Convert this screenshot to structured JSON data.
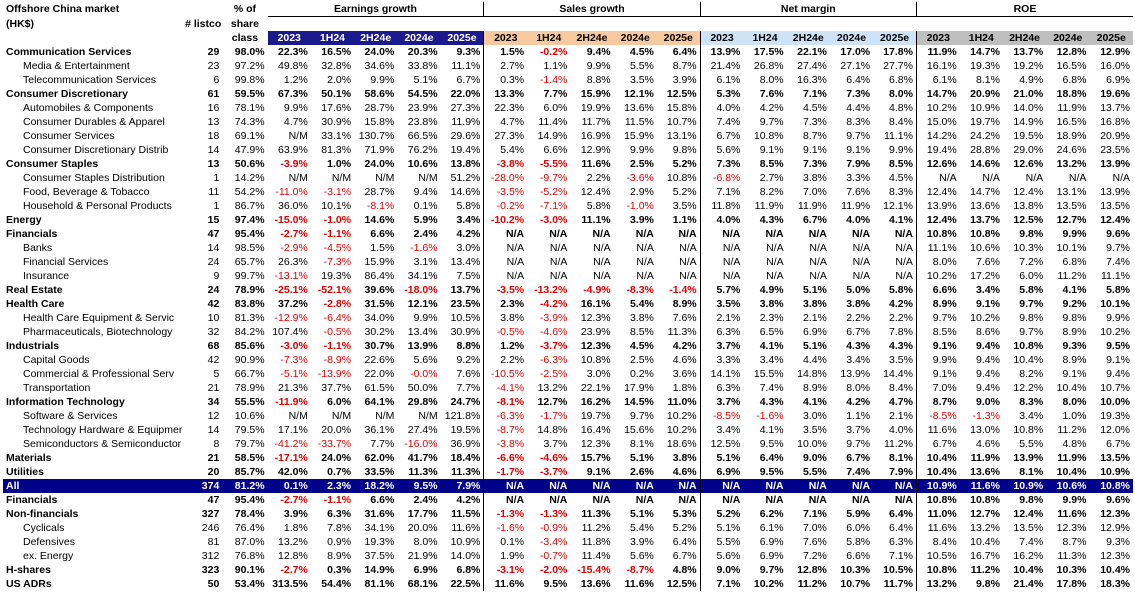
{
  "header": {
    "title": "Offshore China market",
    "currency": "(HK$)",
    "listco": "# listco",
    "share_line1": "% of",
    "share_line2": "share",
    "share_line3": "class",
    "groups": [
      "Earnings growth",
      "Sales growth",
      "Net margin",
      "ROE"
    ],
    "years": [
      "2023",
      "1H24",
      "2H24e",
      "2024e",
      "2025e"
    ]
  },
  "rows": [
    {
      "name": "Communication Services",
      "lvl": 0,
      "listco": "29",
      "share": "98.0%",
      "v": [
        "22.3%",
        "16.5%",
        "24.0%",
        "20.3%",
        "9.3%",
        "1.5%",
        "-0.2%",
        "9.4%",
        "4.5%",
        "6.4%",
        "13.9%",
        "17.5%",
        "22.1%",
        "17.0%",
        "17.8%",
        "11.9%",
        "14.7%",
        "13.7%",
        "12.8%",
        "12.9%"
      ]
    },
    {
      "name": "Media & Entertainment",
      "lvl": 1,
      "listco": "23",
      "share": "97.2%",
      "v": [
        "49.8%",
        "32.8%",
        "34.6%",
        "33.8%",
        "11.1%",
        "2.7%",
        "1.1%",
        "9.9%",
        "5.5%",
        "8.7%",
        "21.4%",
        "26.8%",
        "27.4%",
        "27.1%",
        "27.7%",
        "16.1%",
        "19.3%",
        "19.2%",
        "16.5%",
        "16.0%"
      ]
    },
    {
      "name": "Telecommunication Services",
      "lvl": 1,
      "listco": "6",
      "share": "99.8%",
      "v": [
        "1.2%",
        "2.0%",
        "9.9%",
        "5.1%",
        "6.7%",
        "0.3%",
        "-1.4%",
        "8.8%",
        "3.5%",
        "3.9%",
        "6.1%",
        "8.0%",
        "16.3%",
        "6.4%",
        "6.8%",
        "6.1%",
        "8.1%",
        "4.9%",
        "6.8%",
        "6.9%"
      ]
    },
    {
      "name": "Consumer Discretionary",
      "lvl": 0,
      "listco": "61",
      "share": "59.5%",
      "v": [
        "67.3%",
        "50.1%",
        "58.6%",
        "54.5%",
        "22.0%",
        "13.3%",
        "7.7%",
        "15.9%",
        "12.1%",
        "12.5%",
        "5.3%",
        "7.6%",
        "7.1%",
        "7.3%",
        "8.0%",
        "14.7%",
        "20.9%",
        "21.0%",
        "18.8%",
        "19.6%"
      ]
    },
    {
      "name": "Automobiles & Components",
      "lvl": 1,
      "listco": "16",
      "share": "78.1%",
      "v": [
        "9.9%",
        "17.6%",
        "28.7%",
        "23.9%",
        "27.3%",
        "22.3%",
        "6.0%",
        "19.9%",
        "13.6%",
        "15.8%",
        "4.0%",
        "4.2%",
        "4.5%",
        "4.4%",
        "4.8%",
        "10.2%",
        "10.9%",
        "14.0%",
        "11.9%",
        "13.7%"
      ]
    },
    {
      "name": "Consumer Durables & Apparel",
      "lvl": 1,
      "listco": "13",
      "share": "74.3%",
      "v": [
        "4.7%",
        "30.9%",
        "15.8%",
        "23.8%",
        "11.9%",
        "4.7%",
        "11.4%",
        "11.7%",
        "11.5%",
        "10.7%",
        "7.4%",
        "9.7%",
        "7.3%",
        "8.3%",
        "8.4%",
        "15.0%",
        "19.7%",
        "14.9%",
        "16.5%",
        "16.8%"
      ]
    },
    {
      "name": "Consumer Services",
      "lvl": 1,
      "listco": "18",
      "share": "69.1%",
      "v": [
        "N/M",
        "33.1%",
        "130.7%",
        "66.5%",
        "29.6%",
        "27.3%",
        "14.9%",
        "16.9%",
        "15.9%",
        "13.1%",
        "6.7%",
        "10.8%",
        "8.7%",
        "9.7%",
        "11.1%",
        "14.2%",
        "24.2%",
        "19.5%",
        "18.9%",
        "20.9%"
      ]
    },
    {
      "name": "Consumer Discretionary Distrib",
      "lvl": 1,
      "listco": "14",
      "share": "47.9%",
      "v": [
        "63.9%",
        "81.3%",
        "71.9%",
        "76.2%",
        "19.4%",
        "5.4%",
        "6.6%",
        "12.9%",
        "9.9%",
        "9.8%",
        "5.6%",
        "9.1%",
        "9.1%",
        "9.1%",
        "9.9%",
        "19.4%",
        "28.8%",
        "29.0%",
        "24.6%",
        "23.5%"
      ]
    },
    {
      "name": "Consumer Staples",
      "lvl": 0,
      "listco": "13",
      "share": "50.6%",
      "v": [
        "-3.9%",
        "1.0%",
        "24.0%",
        "10.6%",
        "13.8%",
        "-3.8%",
        "-5.5%",
        "11.6%",
        "2.5%",
        "5.2%",
        "7.3%",
        "8.5%",
        "7.3%",
        "7.9%",
        "8.5%",
        "12.6%",
        "14.6%",
        "12.6%",
        "13.2%",
        "13.9%"
      ]
    },
    {
      "name": "Consumer Staples Distribution",
      "lvl": 1,
      "listco": "1",
      "share": "14.2%",
      "v": [
        "N/M",
        "N/M",
        "N/M",
        "N/M",
        "51.2%",
        "-28.0%",
        "-9.7%",
        "2.2%",
        "-3.6%",
        "10.8%",
        "-6.8%",
        "2.7%",
        "3.8%",
        "3.3%",
        "4.5%",
        "N/A",
        "N/A",
        "N/A",
        "N/A",
        "N/A"
      ]
    },
    {
      "name": "Food, Beverage & Tobacco",
      "lvl": 1,
      "listco": "11",
      "share": "54.2%",
      "v": [
        "-11.0%",
        "-3.1%",
        "28.7%",
        "9.4%",
        "14.6%",
        "-3.5%",
        "-5.2%",
        "12.4%",
        "2.9%",
        "5.2%",
        "7.1%",
        "8.2%",
        "7.0%",
        "7.6%",
        "8.3%",
        "12.4%",
        "14.7%",
        "12.4%",
        "13.1%",
        "13.9%"
      ]
    },
    {
      "name": "Household & Personal Products",
      "lvl": 1,
      "listco": "1",
      "share": "86.7%",
      "v": [
        "36.0%",
        "10.1%",
        "-8.1%",
        "0.1%",
        "5.8%",
        "-0.2%",
        "-7.1%",
        "5.8%",
        "-1.0%",
        "3.5%",
        "11.8%",
        "11.9%",
        "11.9%",
        "11.9%",
        "12.1%",
        "13.9%",
        "13.6%",
        "13.8%",
        "13.5%",
        "13.5%"
      ]
    },
    {
      "name": "Energy",
      "lvl": 0,
      "listco": "15",
      "share": "97.4%",
      "v": [
        "-15.0%",
        "-1.0%",
        "14.6%",
        "5.9%",
        "3.4%",
        "-10.2%",
        "-3.0%",
        "11.1%",
        "3.9%",
        "1.1%",
        "4.0%",
        "4.3%",
        "6.7%",
        "4.0%",
        "4.1%",
        "12.4%",
        "13.7%",
        "12.5%",
        "12.7%",
        "12.4%"
      ]
    },
    {
      "name": "Financials",
      "lvl": 0,
      "listco": "47",
      "share": "95.4%",
      "v": [
        "-2.7%",
        "-1.1%",
        "6.6%",
        "2.4%",
        "4.2%",
        "N/A",
        "N/A",
        "N/A",
        "N/A",
        "N/A",
        "N/A",
        "N/A",
        "N/A",
        "N/A",
        "N/A",
        "10.8%",
        "10.8%",
        "9.8%",
        "9.9%",
        "9.6%"
      ]
    },
    {
      "name": "Banks",
      "lvl": 1,
      "listco": "14",
      "share": "98.5%",
      "v": [
        "-2.9%",
        "-4.5%",
        "1.5%",
        "-1.6%",
        "3.0%",
        "N/A",
        "N/A",
        "N/A",
        "N/A",
        "N/A",
        "N/A",
        "N/A",
        "N/A",
        "N/A",
        "N/A",
        "11.1%",
        "10.6%",
        "10.3%",
        "10.1%",
        "9.7%"
      ]
    },
    {
      "name": "Financial Services",
      "lvl": 1,
      "listco": "24",
      "share": "65.7%",
      "v": [
        "26.3%",
        "-7.3%",
        "15.9%",
        "3.1%",
        "13.4%",
        "N/A",
        "N/A",
        "N/A",
        "N/A",
        "N/A",
        "N/A",
        "N/A",
        "N/A",
        "N/A",
        "N/A",
        "8.0%",
        "7.6%",
        "7.2%",
        "6.8%",
        "7.4%"
      ]
    },
    {
      "name": "Insurance",
      "lvl": 1,
      "listco": "9",
      "share": "99.7%",
      "v": [
        "-13.1%",
        "19.3%",
        "86.4%",
        "34.1%",
        "7.5%",
        "N/A",
        "N/A",
        "N/A",
        "N/A",
        "N/A",
        "N/A",
        "N/A",
        "N/A",
        "N/A",
        "N/A",
        "10.2%",
        "17.2%",
        "6.0%",
        "11.2%",
        "11.1%"
      ]
    },
    {
      "name": "Real Estate",
      "lvl": 0,
      "listco": "24",
      "share": "78.9%",
      "v": [
        "-25.1%",
        "-52.1%",
        "39.6%",
        "-18.0%",
        "13.7%",
        "-3.5%",
        "-13.2%",
        "-4.9%",
        "-8.3%",
        "-1.4%",
        "5.7%",
        "4.9%",
        "5.1%",
        "5.0%",
        "5.8%",
        "6.6%",
        "3.4%",
        "5.8%",
        "4.1%",
        "5.8%"
      ]
    },
    {
      "name": "Health Care",
      "lvl": 0,
      "listco": "42",
      "share": "83.8%",
      "v": [
        "37.2%",
        "-2.8%",
        "31.5%",
        "12.1%",
        "23.5%",
        "2.3%",
        "-4.2%",
        "16.1%",
        "5.4%",
        "8.9%",
        "3.5%",
        "3.8%",
        "3.8%",
        "3.8%",
        "4.2%",
        "8.9%",
        "9.1%",
        "9.7%",
        "9.2%",
        "10.1%"
      ]
    },
    {
      "name": "Health Care Equipment & Servic",
      "lvl": 1,
      "listco": "10",
      "share": "81.3%",
      "v": [
        "-12.9%",
        "-6.4%",
        "34.0%",
        "9.9%",
        "10.5%",
        "3.8%",
        "-3.9%",
        "12.3%",
        "3.8%",
        "7.6%",
        "2.1%",
        "2.3%",
        "2.1%",
        "2.2%",
        "2.2%",
        "9.7%",
        "10.2%",
        "9.8%",
        "9.8%",
        "9.9%"
      ]
    },
    {
      "name": "Pharmaceuticals, Biotechnology",
      "lvl": 1,
      "listco": "32",
      "share": "84.2%",
      "v": [
        "107.4%",
        "-0.5%",
        "30.2%",
        "13.4%",
        "30.9%",
        "-0.5%",
        "-4.6%",
        "23.9%",
        "8.5%",
        "11.3%",
        "6.3%",
        "6.5%",
        "6.9%",
        "6.7%",
        "7.8%",
        "8.5%",
        "8.6%",
        "9.7%",
        "8.9%",
        "10.2%"
      ]
    },
    {
      "name": "Industrials",
      "lvl": 0,
      "listco": "68",
      "share": "85.6%",
      "v": [
        "-3.0%",
        "-1.1%",
        "30.7%",
        "13.9%",
        "8.8%",
        "1.2%",
        "-3.7%",
        "12.3%",
        "4.5%",
        "4.2%",
        "3.7%",
        "4.1%",
        "5.1%",
        "4.3%",
        "4.3%",
        "9.1%",
        "9.4%",
        "10.8%",
        "9.3%",
        "9.5%"
      ]
    },
    {
      "name": "Capital Goods",
      "lvl": 1,
      "listco": "42",
      "share": "90.9%",
      "v": [
        "-7.3%",
        "-8.9%",
        "22.6%",
        "5.6%",
        "9.2%",
        "2.2%",
        "-6.3%",
        "10.8%",
        "2.5%",
        "4.6%",
        "3.3%",
        "3.4%",
        "4.4%",
        "3.4%",
        "3.5%",
        "9.9%",
        "9.4%",
        "10.4%",
        "8.9%",
        "9.1%"
      ]
    },
    {
      "name": "Commercial & Professional Serv",
      "lvl": 1,
      "listco": "5",
      "share": "66.7%",
      "v": [
        "-5.1%",
        "-13.9%",
        "22.0%",
        "-0.0%",
        "7.6%",
        "-10.5%",
        "-2.5%",
        "3.0%",
        "0.2%",
        "3.6%",
        "14.1%",
        "15.5%",
        "14.8%",
        "13.9%",
        "14.4%",
        "9.1%",
        "9.4%",
        "8.2%",
        "9.1%",
        "9.4%"
      ]
    },
    {
      "name": "Transportation",
      "lvl": 1,
      "listco": "21",
      "share": "78.9%",
      "v": [
        "21.3%",
        "37.7%",
        "61.5%",
        "50.0%",
        "7.7%",
        "-4.1%",
        "13.2%",
        "22.1%",
        "17.9%",
        "1.8%",
        "6.3%",
        "7.4%",
        "8.9%",
        "8.0%",
        "8.4%",
        "7.0%",
        "9.4%",
        "12.2%",
        "10.4%",
        "10.7%"
      ]
    },
    {
      "name": "Information Technology",
      "lvl": 0,
      "listco": "34",
      "share": "55.5%",
      "v": [
        "-11.9%",
        "6.0%",
        "64.1%",
        "29.8%",
        "24.7%",
        "-8.1%",
        "12.7%",
        "16.2%",
        "14.5%",
        "11.0%",
        "3.7%",
        "4.3%",
        "4.1%",
        "4.2%",
        "4.7%",
        "8.7%",
        "9.0%",
        "8.3%",
        "8.0%",
        "10.0%"
      ]
    },
    {
      "name": "Software & Services",
      "lvl": 1,
      "listco": "12",
      "share": "10.6%",
      "v": [
        "N/M",
        "N/M",
        "N/M",
        "N/M",
        "121.8%",
        "-6.3%",
        "-1.7%",
        "19.7%",
        "9.7%",
        "10.2%",
        "-8.5%",
        "-1.6%",
        "3.0%",
        "1.1%",
        "2.1%",
        "-8.5%",
        "-1.3%",
        "3.4%",
        "1.0%",
        "19.3%"
      ]
    },
    {
      "name": "Technology Hardware & Equipmer",
      "lvl": 1,
      "listco": "14",
      "share": "79.5%",
      "v": [
        "17.1%",
        "20.0%",
        "36.1%",
        "27.4%",
        "19.5%",
        "-8.7%",
        "14.8%",
        "16.4%",
        "15.6%",
        "10.2%",
        "3.4%",
        "4.1%",
        "3.5%",
        "3.7%",
        "4.0%",
        "11.6%",
        "13.0%",
        "10.8%",
        "11.2%",
        "12.0%"
      ]
    },
    {
      "name": "Semiconductors & Semiconductor",
      "lvl": 1,
      "listco": "8",
      "share": "79.7%",
      "v": [
        "-41.2%",
        "-33.7%",
        "7.7%",
        "-16.0%",
        "36.9%",
        "-3.8%",
        "3.7%",
        "12.3%",
        "8.1%",
        "18.6%",
        "12.5%",
        "9.5%",
        "10.0%",
        "9.7%",
        "11.2%",
        "6.7%",
        "4.6%",
        "5.5%",
        "4.8%",
        "6.7%"
      ]
    },
    {
      "name": "Materials",
      "lvl": 0,
      "listco": "21",
      "share": "58.5%",
      "v": [
        "-17.1%",
        "24.0%",
        "62.0%",
        "41.7%",
        "18.4%",
        "-6.6%",
        "-4.6%",
        "15.7%",
        "5.1%",
        "3.8%",
        "5.1%",
        "6.4%",
        "9.0%",
        "6.7%",
        "8.1%",
        "10.4%",
        "11.9%",
        "13.9%",
        "11.9%",
        "13.5%"
      ]
    },
    {
      "name": "Utilities",
      "lvl": 0,
      "listco": "20",
      "share": "85.7%",
      "v": [
        "42.0%",
        "0.7%",
        "33.5%",
        "11.3%",
        "11.3%",
        "-1.7%",
        "-3.7%",
        "9.1%",
        "2.6%",
        "4.6%",
        "6.9%",
        "9.5%",
        "5.5%",
        "7.4%",
        "7.9%",
        "10.4%",
        "13.6%",
        "8.1%",
        "10.4%",
        "10.9%"
      ]
    }
  ],
  "all_row": {
    "name": "All",
    "listco": "374",
    "share": "81.2%",
    "v": [
      "0.1%",
      "2.3%",
      "18.2%",
      "9.5%",
      "7.9%",
      "N/A",
      "N/A",
      "N/A",
      "N/A",
      "N/A",
      "N/A",
      "N/A",
      "N/A",
      "N/A",
      "N/A",
      "10.9%",
      "11.6%",
      "10.9%",
      "10.6%",
      "10.8%"
    ]
  },
  "bottom_rows": [
    {
      "name": "Financials",
      "lvl": 0,
      "boldname": false,
      "listco": "47",
      "share": "95.4%",
      "v": [
        "-2.7%",
        "-1.1%",
        "6.6%",
        "2.4%",
        "4.2%",
        "N/A",
        "N/A",
        "N/A",
        "N/A",
        "N/A",
        "N/A",
        "N/A",
        "N/A",
        "N/A",
        "N/A",
        "10.8%",
        "10.8%",
        "9.8%",
        "9.9%",
        "9.6%"
      ]
    },
    {
      "name": "Non-financials",
      "lvl": 0,
      "boldname": false,
      "listco": "327",
      "share": "78.4%",
      "v": [
        "3.9%",
        "6.3%",
        "31.6%",
        "17.7%",
        "11.5%",
        "-1.3%",
        "-1.3%",
        "11.3%",
        "5.1%",
        "5.3%",
        "5.2%",
        "6.2%",
        "7.1%",
        "5.9%",
        "6.4%",
        "11.0%",
        "12.7%",
        "12.4%",
        "11.6%",
        "12.3%"
      ]
    },
    {
      "name": "Cyclicals",
      "lvl": 1,
      "boldname": false,
      "listco": "246",
      "share": "76.4%",
      "v": [
        "1.8%",
        "7.8%",
        "34.1%",
        "20.0%",
        "11.6%",
        "-1.6%",
        "-0.9%",
        "11.2%",
        "5.4%",
        "5.2%",
        "5.1%",
        "6.1%",
        "7.0%",
        "6.0%",
        "6.4%",
        "11.6%",
        "13.2%",
        "13.5%",
        "12.3%",
        "12.9%"
      ]
    },
    {
      "name": "Defensives",
      "lvl": 1,
      "boldname": false,
      "listco": "81",
      "share": "87.0%",
      "v": [
        "13.2%",
        "0.9%",
        "19.3%",
        "8.0%",
        "10.9%",
        "0.1%",
        "-3.4%",
        "11.8%",
        "3.9%",
        "6.4%",
        "5.5%",
        "6.9%",
        "7.6%",
        "5.8%",
        "6.3%",
        "8.4%",
        "10.4%",
        "7.4%",
        "8.7%",
        "9.3%"
      ]
    },
    {
      "name": "ex. Energy",
      "lvl": 1,
      "boldname": false,
      "listco": "312",
      "share": "76.8%",
      "v": [
        "12.8%",
        "8.9%",
        "37.5%",
        "21.9%",
        "14.0%",
        "1.9%",
        "-0.7%",
        "11.4%",
        "5.6%",
        "6.7%",
        "5.6%",
        "6.9%",
        "7.2%",
        "6.6%",
        "7.1%",
        "10.5%",
        "16.7%",
        "16.2%",
        "11.3%",
        "12.3%"
      ]
    },
    {
      "name": "H-shares",
      "lvl": 0,
      "boldname": false,
      "listco": "323",
      "share": "90.1%",
      "v": [
        "-2.7%",
        "0.3%",
        "14.9%",
        "6.9%",
        "6.8%",
        "-3.1%",
        "-2.0%",
        "-15.4%",
        "-8.7%",
        "4.8%",
        "9.0%",
        "9.7%",
        "12.8%",
        "10.3%",
        "10.5%",
        "10.8%",
        "11.2%",
        "10.4%",
        "10.3%",
        "10.4%"
      ]
    },
    {
      "name": "US ADRs",
      "lvl": 0,
      "boldname": false,
      "listco": "50",
      "share": "53.4%",
      "v": [
        "313.5%",
        "54.4%",
        "81.1%",
        "68.1%",
        "22.5%",
        "11.6%",
        "9.5%",
        "13.6%",
        "11.6%",
        "12.5%",
        "7.1%",
        "10.2%",
        "11.2%",
        "10.7%",
        "11.7%",
        "13.2%",
        "9.8%",
        "21.4%",
        "17.8%",
        "18.3%"
      ]
    }
  ],
  "colors": {
    "negative": "#e00000",
    "all_bg": "#00008b",
    "eg_header": "#1a1a8c",
    "sg_header": "#f7c9a0",
    "nm_header": "#cfe3f7",
    "roe_header": "#bfbfbf"
  }
}
